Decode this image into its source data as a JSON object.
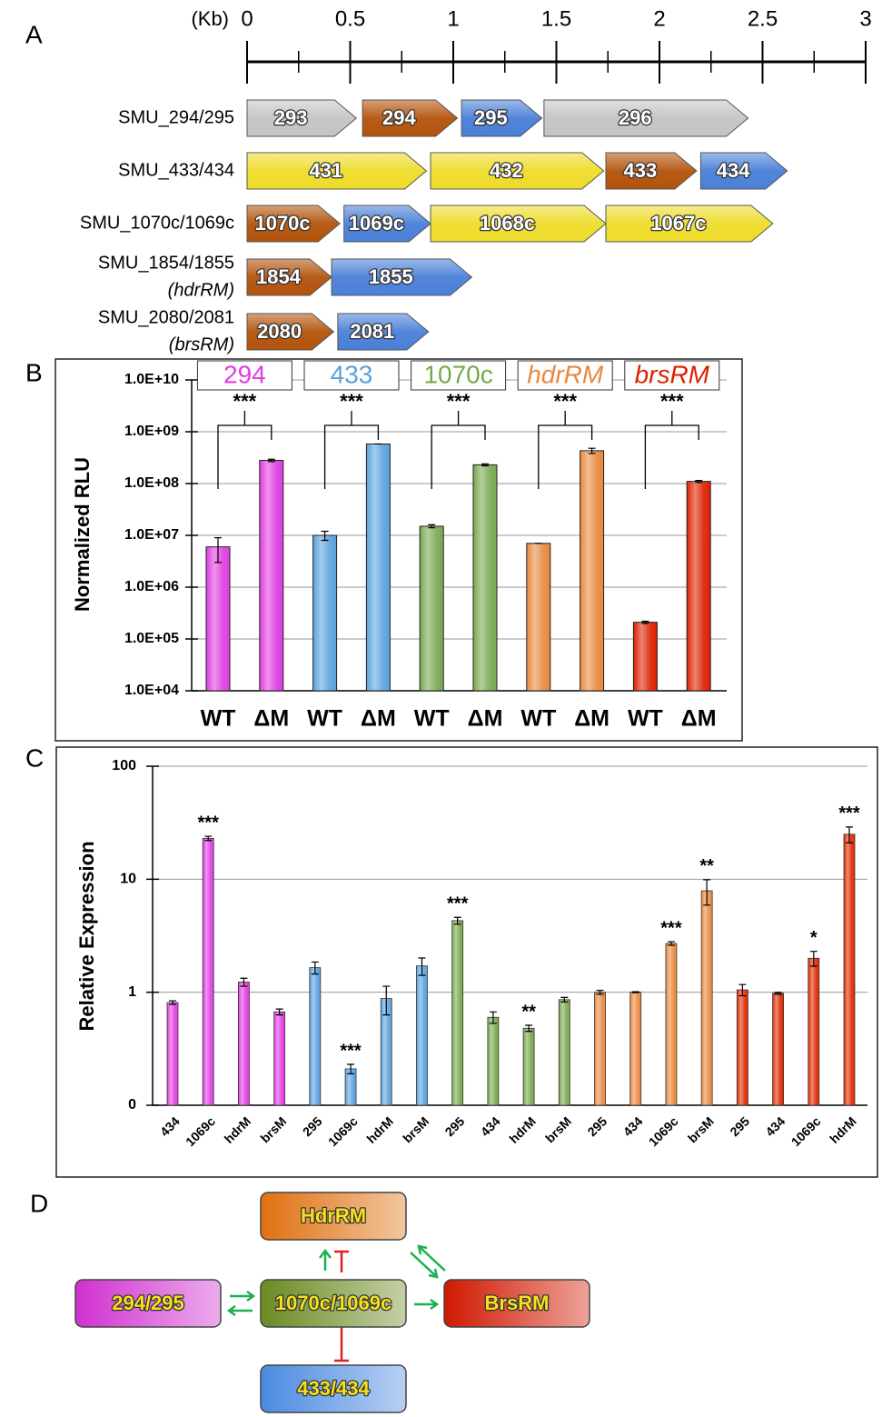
{
  "panel_labels": [
    "A",
    "B",
    "C",
    "D"
  ],
  "gene_map": {
    "unit": "(Kb)",
    "xlim": [
      0,
      3
    ],
    "xticks": [
      0,
      0.5,
      1,
      1.5,
      2,
      2.5,
      3
    ],
    "minor_xticks": [
      0.25,
      0.75,
      1.25,
      1.75,
      2.25,
      2.75
    ],
    "rows": [
      {
        "label": "SMU_294/295",
        "genes": [
          {
            "name": "293",
            "start": 0,
            "end": 0.53,
            "color": "#c4c4c4"
          },
          {
            "name": "294",
            "start": 0.56,
            "end": 1.02,
            "color": "#b3530c"
          },
          {
            "name": "295",
            "start": 1.04,
            "end": 1.43,
            "color": "#4a80d8"
          },
          {
            "name": "296",
            "start": 1.44,
            "end": 2.43,
            "color": "#c4c4c4"
          }
        ]
      },
      {
        "label": "SMU_433/434",
        "genes": [
          {
            "name": "431",
            "start": 0,
            "end": 0.87,
            "color": "#eedc2a"
          },
          {
            "name": "432",
            "start": 0.89,
            "end": 1.73,
            "color": "#eedc2a"
          },
          {
            "name": "433",
            "start": 1.74,
            "end": 2.18,
            "color": "#b3530c"
          },
          {
            "name": "434",
            "start": 2.2,
            "end": 2.62,
            "color": "#4a80d8"
          }
        ]
      },
      {
        "label": "SMU_1070c/1069c",
        "genes": [
          {
            "name": "1070c",
            "start": 0,
            "end": 0.45,
            "color": "#b3530c"
          },
          {
            "name": "1069c",
            "start": 0.47,
            "end": 0.89,
            "color": "#4a80d8"
          },
          {
            "name": "1068c",
            "start": 0.89,
            "end": 1.74,
            "color": "#eedc2a"
          },
          {
            "name": "1067c",
            "start": 1.74,
            "end": 2.55,
            "color": "#eedc2a"
          }
        ]
      },
      {
        "label": "SMU_1854/1855",
        "sublabel": "(hdrRM)",
        "genes": [
          {
            "name": "1854",
            "start": 0,
            "end": 0.41,
            "color": "#b3530c"
          },
          {
            "name": "1855",
            "start": 0.41,
            "end": 1.09,
            "color": "#4a80d8"
          }
        ]
      },
      {
        "label": "SMU_2080/2081",
        "sublabel": "(brsRM)",
        "genes": [
          {
            "name": "2080",
            "start": 0,
            "end": 0.42,
            "color": "#b3530c"
          },
          {
            "name": "2081",
            "start": 0.44,
            "end": 0.88,
            "color": "#4a80d8"
          }
        ]
      }
    ]
  },
  "chart_data": [
    {
      "type": "bar",
      "y_label": "Normalized RLU",
      "log_scale": true,
      "grid": true,
      "ylim": [
        10000,
        10000000000
      ],
      "yticks": [
        {
          "value": 10000,
          "label": "1.0E+04"
        },
        {
          "value": 100000,
          "label": "1.0E+05"
        },
        {
          "value": 1000000,
          "label": "1.0E+06"
        },
        {
          "value": 10000000,
          "label": "1.0E+07"
        },
        {
          "value": 100000000,
          "label": "1.0E+08"
        },
        {
          "value": 1000000000,
          "label": "1.0E+09"
        },
        {
          "value": 10000000000,
          "label": "1.0E+10"
        }
      ],
      "groups": [
        {
          "name": "294",
          "color": "#e03ce0",
          "italic": false,
          "significance": "***",
          "categories": [
            "WT",
            "ΔM"
          ],
          "values": [
            6000000,
            280000000
          ],
          "errors": [
            3000000,
            15000000
          ]
        },
        {
          "name": "433",
          "color": "#5aa2dc",
          "italic": false,
          "significance": "***",
          "categories": [
            "WT",
            "ΔM"
          ],
          "values": [
            10000000,
            580000000
          ],
          "errors": [
            2000000,
            0
          ]
        },
        {
          "name": "1070c",
          "color": "#78a84e",
          "italic": false,
          "significance": "***",
          "categories": [
            "WT",
            "ΔM"
          ],
          "values": [
            15000000,
            230000000
          ],
          "errors": [
            1000000,
            10000000
          ]
        },
        {
          "name": "hdrRM",
          "color": "#e8893e",
          "italic": true,
          "significance": "***",
          "categories": [
            "WT",
            "ΔM"
          ],
          "values": [
            7000000,
            430000000
          ],
          "errors": [
            0,
            50000000
          ]
        },
        {
          "name": "brsRM",
          "color": "#dd2000",
          "italic": true,
          "significance": "***",
          "categories": [
            "WT",
            "ΔM"
          ],
          "values": [
            210000,
            110000000
          ],
          "errors": [
            10000,
            5000000
          ]
        }
      ]
    },
    {
      "type": "bar",
      "y_label": "Relative Expression",
      "log_scale": true,
      "grid": true,
      "ylim": [
        0.1,
        100
      ],
      "yticks": [
        {
          "value": 0.1,
          "label": "0"
        },
        1,
        10,
        100
      ],
      "categories": [
        "434",
        "1069c",
        "hdrM",
        "brsM",
        "295",
        "1069c",
        "hdrM",
        "brsM",
        "295",
        "434",
        "hdrM",
        "brsM",
        "295",
        "434",
        "1069c",
        "brsM",
        "295",
        "434",
        "1069c",
        "hdrM"
      ],
      "values": [
        0.81,
        23,
        1.23,
        0.67,
        1.65,
        0.21,
        0.88,
        1.71,
        4.3,
        0.6,
        0.48,
        0.86,
        1.0,
        1.0,
        2.7,
        7.9,
        1.05,
        0.98,
        2.0,
        25
      ],
      "errors": [
        0.03,
        1,
        0.1,
        0.04,
        0.2,
        0.02,
        0.25,
        0.3,
        0.3,
        0.07,
        0.03,
        0.04,
        0.04,
        0.01,
        0.1,
        2,
        0.12,
        0.02,
        0.3,
        4
      ],
      "colors": [
        "#e03ce0",
        "#e03ce0",
        "#e03ce0",
        "#e03ce0",
        "#5aa2dc",
        "#5aa2dc",
        "#5aa2dc",
        "#5aa2dc",
        "#78a84e",
        "#78a84e",
        "#78a84e",
        "#78a84e",
        "#e8893e",
        "#e8893e",
        "#e8893e",
        "#e8893e",
        "#e02a00",
        "#e02a00",
        "#e02a00",
        "#e02a00"
      ],
      "significance": [
        null,
        "***",
        null,
        null,
        null,
        "***",
        null,
        null,
        "***",
        null,
        "**",
        null,
        null,
        null,
        "***",
        "**",
        null,
        null,
        "*",
        "***"
      ]
    }
  ],
  "network": {
    "nodes": [
      {
        "label": "HdrRM",
        "color": "#e07010"
      },
      {
        "label": "294/295",
        "color": "#d030d0"
      },
      {
        "label": "1070c/1069c",
        "color": "#6a8a22"
      },
      {
        "label": "BrsRM",
        "color": "#d01800"
      },
      {
        "label": "433/434",
        "color": "#4a8ae0"
      }
    ]
  }
}
